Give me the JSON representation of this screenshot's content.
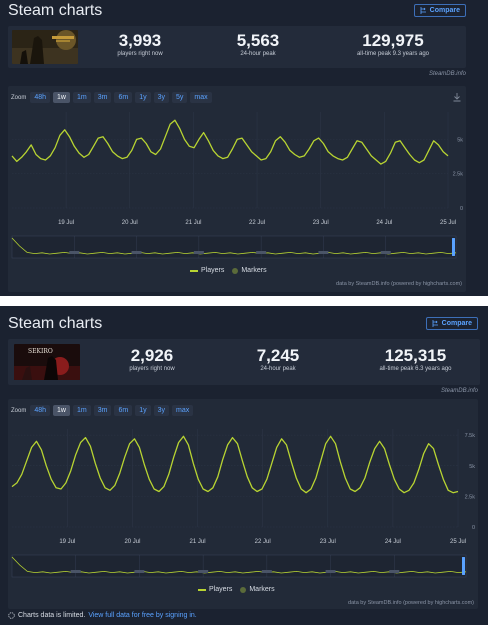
{
  "panels": [
    {
      "title": "Steam charts",
      "compare_label": "Compare",
      "thumb_colors": [
        "#2b2416",
        "#c49a3a",
        "#5a4a2a"
      ],
      "stats": [
        {
          "value": "3,993",
          "label": "players right now"
        },
        {
          "value": "5,563",
          "label": "24-hour peak"
        },
        {
          "value": "129,975",
          "label": "all-time peak 9.3 years ago"
        }
      ],
      "credit": "SteamDB.info",
      "zoom_label": "Zoom",
      "zoom_buttons": [
        "48h",
        "1w",
        "1m",
        "3m",
        "6m",
        "1y",
        "3y",
        "5y",
        "max"
      ],
      "zoom_active": "1w",
      "legend": {
        "players": "Players",
        "markers": "Markers"
      },
      "chart_credit": "data by SteamDB.info (powered by highcharts.com)",
      "chart_data": {
        "type": "line",
        "x_ticks": [
          "19 Jul",
          "20 Jul",
          "21 Jul",
          "22 Jul",
          "23 Jul",
          "24 Jul",
          "25 Jul"
        ],
        "y_ticks": [
          "0",
          "2.5k",
          "5k"
        ],
        "ylim": [
          0,
          7000
        ],
        "series": [
          {
            "name": "Players",
            "values": [
              3800,
              3400,
              3700,
              4100,
              4600,
              3900,
              3600,
              3500,
              3800,
              4400,
              5300,
              5700,
              5200,
              4500,
              4000,
              3700,
              3900,
              4500,
              5100,
              5200,
              4700,
              4100,
              3800,
              3600,
              3700,
              4200,
              5000,
              5100,
              4700,
              4100,
              3900,
              4300,
              5200,
              6100,
              6400,
              5800,
              5000,
              4500,
              4400,
              5000,
              5500,
              4900,
              4200,
              3800,
              3600,
              3700,
              4300,
              5000,
              5100,
              4600,
              4100,
              3800,
              3500,
              3600,
              4100,
              4900,
              5200,
              4800,
              4200,
              3900,
              3700,
              3800,
              4300,
              4900,
              5100,
              4700,
              4100,
              3800,
              3600,
              3500,
              3700,
              4300,
              4900,
              4800,
              4300,
              3800,
              3500,
              3200,
              3400,
              4000,
              4800,
              4900,
              4400,
              3900,
              3500,
              3300,
              3500,
              4200,
              4900,
              4600,
              4100,
              3800
            ]
          }
        ],
        "grid": true
      }
    },
    {
      "title": "Steam charts",
      "compare_label": "Compare",
      "thumb_colors": [
        "#1a0c0c",
        "#8a1c1c",
        "#e8e2d8"
      ],
      "thumb_text": "SEKIRO",
      "stats": [
        {
          "value": "2,926",
          "label": "players right now"
        },
        {
          "value": "7,245",
          "label": "24-hour peak"
        },
        {
          "value": "125,315",
          "label": "all-time peak 6.3 years ago"
        }
      ],
      "credit": "SteamDB.info",
      "zoom_label": "Zoom",
      "zoom_buttons": [
        "48h",
        "1w",
        "1m",
        "3m",
        "6m",
        "1y",
        "3y",
        "max"
      ],
      "zoom_active": "1w",
      "legend": {
        "players": "Players",
        "markers": "Markers"
      },
      "chart_credit": "data by SteamDB.info (powered by highcharts.com)",
      "chart_data": {
        "type": "line",
        "x_ticks": [
          "19 Jul",
          "20 Jul",
          "21 Jul",
          "22 Jul",
          "23 Jul",
          "24 Jul",
          "25 Jul"
        ],
        "y_ticks": [
          "0",
          "2.5k",
          "5k",
          "7.5k"
        ],
        "ylim": [
          0,
          8000
        ],
        "series": [
          {
            "name": "Players",
            "values": [
              3300,
              3600,
              4300,
              5400,
              6500,
              7000,
              6300,
              5000,
              3900,
              3200,
              3100,
              3600,
              4600,
              5900,
              6900,
              7300,
              6600,
              5200,
              4000,
              3200,
              3000,
              3400,
              4400,
              5700,
              6800,
              7200,
              6500,
              5100,
              3900,
              3100,
              2900,
              3300,
              4300,
              5700,
              6900,
              7400,
              6700,
              5200,
              3900,
              3100,
              2900,
              3200,
              4100,
              5500,
              6700,
              7300,
              6800,
              5400,
              4100,
              3200,
              2900,
              3100,
              3900,
              5200,
              6500,
              7200,
              6700,
              5300,
              4000,
              3100,
              2800,
              3100,
              4000,
              5400,
              6800,
              7400,
              6800,
              5300,
              4000,
              3100,
              2900,
              3200,
              4000,
              5300,
              6400,
              7000,
              6400,
              5100,
              3900,
              3100,
              2800,
              3000,
              3600,
              4700,
              6000,
              6800,
              6400,
              5100,
              3900,
              3000,
              2800,
              2900
            ]
          }
        ],
        "grid": true
      }
    }
  ],
  "limited_note": {
    "text": "Charts data is limited.",
    "link": "View full data for free by signing in."
  }
}
